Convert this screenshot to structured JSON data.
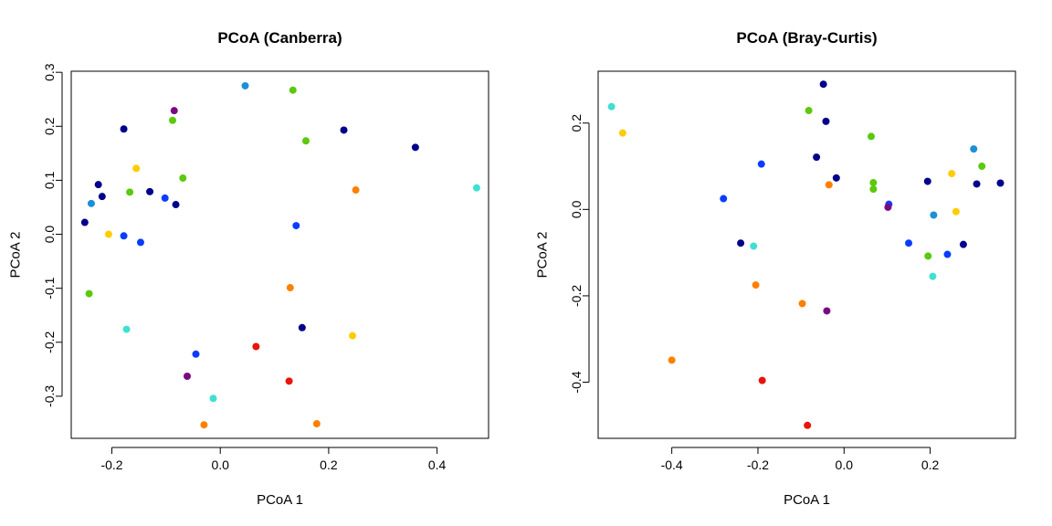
{
  "chart_data": [
    {
      "type": "scatter",
      "title": "PCoA (Canberra)",
      "xlabel": "PCoA 1",
      "ylabel": "PCoA 2",
      "xlim": [
        -0.275,
        0.495
      ],
      "ylim": [
        -0.378,
        0.302
      ],
      "xticks": [
        -0.2,
        0.0,
        0.2,
        0.4
      ],
      "yticks": [
        -0.3,
        -0.2,
        -0.1,
        0.0,
        0.1,
        0.2,
        0.3
      ],
      "xtick_labels": [
        "-0.2",
        "0.0",
        "0.2",
        "0.4"
      ],
      "ytick_labels": [
        "-0.3",
        "-0.2",
        "-0.1",
        "0.0",
        "0.1",
        "0.2",
        "0.3"
      ],
      "grid": false,
      "points": [
        {
          "x": 0.046,
          "y": 0.275,
          "color": "#1e8fd6"
        },
        {
          "x": 0.134,
          "y": 0.267,
          "color": "#5cc80e"
        },
        {
          "x": -0.085,
          "y": 0.229,
          "color": "#7a0a82"
        },
        {
          "x": -0.088,
          "y": 0.211,
          "color": "#5cc80e"
        },
        {
          "x": -0.178,
          "y": 0.195,
          "color": "#00008b"
        },
        {
          "x": 0.228,
          "y": 0.193,
          "color": "#00008b"
        },
        {
          "x": 0.158,
          "y": 0.173,
          "color": "#5cc80e"
        },
        {
          "x": 0.36,
          "y": 0.161,
          "color": "#00008b"
        },
        {
          "x": -0.155,
          "y": 0.122,
          "color": "#ffcc00"
        },
        {
          "x": -0.069,
          "y": 0.104,
          "color": "#5cc80e"
        },
        {
          "x": -0.225,
          "y": 0.092,
          "color": "#00008b"
        },
        {
          "x": 0.473,
          "y": 0.086,
          "color": "#40e0d0"
        },
        {
          "x": 0.25,
          "y": 0.082,
          "color": "#ff8000"
        },
        {
          "x": -0.13,
          "y": 0.079,
          "color": "#00008b"
        },
        {
          "x": -0.167,
          "y": 0.078,
          "color": "#5cc80e"
        },
        {
          "x": -0.218,
          "y": 0.07,
          "color": "#00008b"
        },
        {
          "x": -0.102,
          "y": 0.067,
          "color": "#0a3cff"
        },
        {
          "x": -0.238,
          "y": 0.057,
          "color": "#1e8fd6"
        },
        {
          "x": -0.082,
          "y": 0.055,
          "color": "#00008b"
        },
        {
          "x": -0.25,
          "y": 0.022,
          "color": "#00008b"
        },
        {
          "x": 0.14,
          "y": 0.016,
          "color": "#0a3cff"
        },
        {
          "x": -0.206,
          "y": 0.0,
          "color": "#ffcc00"
        },
        {
          "x": -0.178,
          "y": -0.003,
          "color": "#0a3cff"
        },
        {
          "x": -0.147,
          "y": -0.015,
          "color": "#0a3cff"
        },
        {
          "x": -0.242,
          "y": -0.11,
          "color": "#5cc80e"
        },
        {
          "x": 0.129,
          "y": -0.099,
          "color": "#ff8000"
        },
        {
          "x": 0.151,
          "y": -0.173,
          "color": "#00008b"
        },
        {
          "x": -0.173,
          "y": -0.176,
          "color": "#40e0d0"
        },
        {
          "x": 0.244,
          "y": -0.188,
          "color": "#ffcc00"
        },
        {
          "x": 0.066,
          "y": -0.208,
          "color": "#e8140a"
        },
        {
          "x": -0.045,
          "y": -0.222,
          "color": "#0a3cff"
        },
        {
          "x": -0.061,
          "y": -0.263,
          "color": "#7a0a82"
        },
        {
          "x": 0.127,
          "y": -0.272,
          "color": "#e8140a"
        },
        {
          "x": -0.013,
          "y": -0.304,
          "color": "#40e0d0"
        },
        {
          "x": 0.178,
          "y": -0.351,
          "color": "#ff8000"
        },
        {
          "x": -0.03,
          "y": -0.353,
          "color": "#ff8000"
        }
      ]
    },
    {
      "type": "scatter",
      "title": "PCoA (Bray-Curtis)",
      "xlabel": "PCoA 1",
      "ylabel": "PCoA 2",
      "xlim": [
        -0.571,
        0.398
      ],
      "ylim": [
        -0.53,
        0.32
      ],
      "xticks": [
        -0.4,
        -0.2,
        0.0,
        0.2
      ],
      "yticks": [
        -0.4,
        -0.2,
        0.0,
        0.2
      ],
      "xtick_labels": [
        "-0.4",
        "-0.2",
        "0.0",
        "0.2"
      ],
      "ytick_labels": [
        "-0.4",
        "-0.2",
        "0.0",
        "0.2"
      ],
      "grid": false,
      "points": [
        {
          "x": -0.048,
          "y": 0.29,
          "color": "#00008b"
        },
        {
          "x": -0.54,
          "y": 0.238,
          "color": "#40e0d0"
        },
        {
          "x": -0.082,
          "y": 0.229,
          "color": "#5cc80e"
        },
        {
          "x": -0.042,
          "y": 0.204,
          "color": "#00008b"
        },
        {
          "x": -0.514,
          "y": 0.177,
          "color": "#ffcc00"
        },
        {
          "x": 0.063,
          "y": 0.169,
          "color": "#5cc80e"
        },
        {
          "x": 0.301,
          "y": 0.14,
          "color": "#1e8fd6"
        },
        {
          "x": -0.064,
          "y": 0.121,
          "color": "#00008b"
        },
        {
          "x": -0.192,
          "y": 0.105,
          "color": "#0a3cff"
        },
        {
          "x": 0.32,
          "y": 0.1,
          "color": "#5cc80e"
        },
        {
          "x": 0.25,
          "y": 0.083,
          "color": "#ffcc00"
        },
        {
          "x": -0.018,
          "y": 0.073,
          "color": "#00008b"
        },
        {
          "x": 0.194,
          "y": 0.065,
          "color": "#00008b"
        },
        {
          "x": 0.068,
          "y": 0.062,
          "color": "#5cc80e"
        },
        {
          "x": 0.363,
          "y": 0.061,
          "color": "#00008b"
        },
        {
          "x": 0.308,
          "y": 0.059,
          "color": "#00008b"
        },
        {
          "x": -0.035,
          "y": 0.057,
          "color": "#ff8000"
        },
        {
          "x": 0.068,
          "y": 0.047,
          "color": "#5cc80e"
        },
        {
          "x": -0.28,
          "y": 0.025,
          "color": "#0a3cff"
        },
        {
          "x": 0.104,
          "y": 0.012,
          "color": "#0a3cff"
        },
        {
          "x": 0.102,
          "y": 0.005,
          "color": "#7a0a82"
        },
        {
          "x": 0.26,
          "y": -0.005,
          "color": "#ffcc00"
        },
        {
          "x": 0.208,
          "y": -0.013,
          "color": "#1e8fd6"
        },
        {
          "x": -0.24,
          "y": -0.078,
          "color": "#00008b"
        },
        {
          "x": 0.15,
          "y": -0.078,
          "color": "#0a3cff"
        },
        {
          "x": 0.277,
          "y": -0.081,
          "color": "#00008b"
        },
        {
          "x": -0.21,
          "y": -0.085,
          "color": "#40e0d0"
        },
        {
          "x": 0.24,
          "y": -0.104,
          "color": "#0a3cff"
        },
        {
          "x": 0.195,
          "y": -0.108,
          "color": "#5cc80e"
        },
        {
          "x": 0.206,
          "y": -0.155,
          "color": "#40e0d0"
        },
        {
          "x": -0.205,
          "y": -0.175,
          "color": "#ff8000"
        },
        {
          "x": -0.097,
          "y": -0.218,
          "color": "#ff8000"
        },
        {
          "x": -0.04,
          "y": -0.235,
          "color": "#7a0a82"
        },
        {
          "x": -0.4,
          "y": -0.349,
          "color": "#ff8000"
        },
        {
          "x": -0.19,
          "y": -0.396,
          "color": "#e8140a"
        },
        {
          "x": -0.085,
          "y": -0.5,
          "color": "#e8140a"
        }
      ]
    }
  ]
}
